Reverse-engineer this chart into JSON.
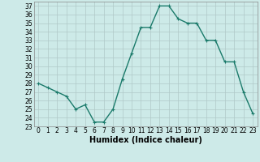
{
  "x": [
    0,
    1,
    2,
    3,
    4,
    5,
    6,
    7,
    8,
    9,
    10,
    11,
    12,
    13,
    14,
    15,
    16,
    17,
    18,
    19,
    20,
    21,
    22,
    23
  ],
  "y": [
    28,
    27.5,
    27,
    26.5,
    25,
    25.5,
    23.5,
    23.5,
    25,
    28.5,
    31.5,
    34.5,
    34.5,
    37,
    37,
    35.5,
    35,
    35,
    33,
    33,
    30.5,
    30.5,
    27,
    24.5
  ],
  "line_color": "#1a7a6a",
  "marker": "+",
  "marker_size": 3,
  "xlabel": "Humidex (Indice chaleur)",
  "ylim": [
    23,
    37.5
  ],
  "xlim": [
    -0.5,
    23.5
  ],
  "yticks": [
    23,
    24,
    25,
    26,
    27,
    28,
    29,
    30,
    31,
    32,
    33,
    34,
    35,
    36,
    37
  ],
  "xtick_labels": [
    "0",
    "1",
    "2",
    "3",
    "4",
    "5",
    "6",
    "7",
    "8",
    "9",
    "10",
    "11",
    "12",
    "13",
    "14",
    "15",
    "16",
    "17",
    "18",
    "19",
    "20",
    "21",
    "22",
    "23"
  ],
  "bg_color": "#cdeae8",
  "grid_color": "#b0c8c8",
  "tick_fontsize": 5.5,
  "xlabel_fontsize": 7,
  "linewidth": 1.0
}
